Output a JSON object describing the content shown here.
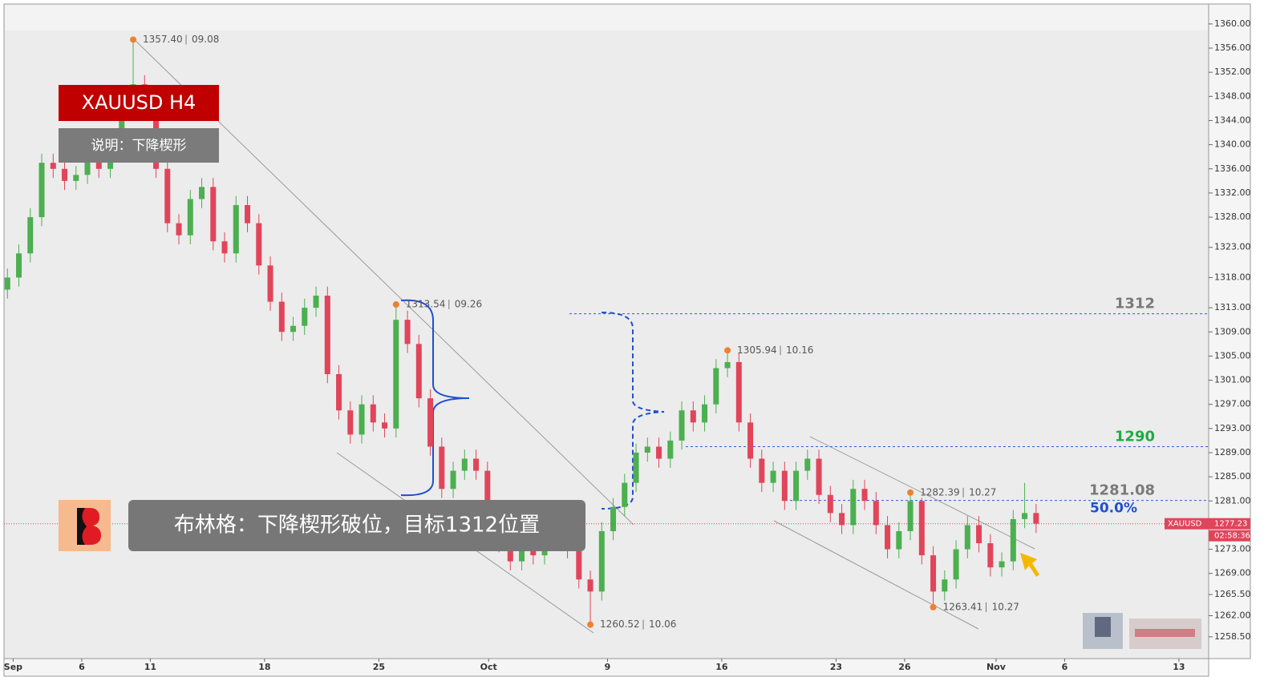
{
  "chart_data": {
    "type": "candlestick",
    "title": "XAUUSD  H4",
    "subtitle": "说明：下降楔形",
    "annotation": "布林格：下降楔形破位，目标1312位置",
    "symbol": "XAUUSD",
    "countdown": "02:58:36",
    "up_color": "#4caf50",
    "down_color": "#e0455a",
    "xlim": [
      -0.4,
      52.3
    ],
    "xticks": [
      {
        "value": 0,
        "label": "Sep"
      },
      {
        "value": 3,
        "label": "6"
      },
      {
        "value": 6,
        "label": "11"
      },
      {
        "value": 11,
        "label": "18"
      },
      {
        "value": 16,
        "label": "25"
      },
      {
        "value": 20.8,
        "label": "Oct"
      },
      {
        "value": 26,
        "label": "9"
      },
      {
        "value": 31,
        "label": "16"
      },
      {
        "value": 36,
        "label": "23"
      },
      {
        "value": 39,
        "label": "26"
      },
      {
        "value": 43,
        "label": "Nov"
      },
      {
        "value": 46,
        "label": "6"
      },
      {
        "value": 51,
        "label": "13"
      }
    ],
    "ylim": [
      1254.9,
      1363.3
    ],
    "yticks": [
      {
        "value": 1360,
        "label": "1360.00"
      },
      {
        "value": 1356,
        "label": "1356.00"
      },
      {
        "value": 1352,
        "label": "1352.00"
      },
      {
        "value": 1348,
        "label": "1348.00"
      },
      {
        "value": 1344,
        "label": "1344.00"
      },
      {
        "value": 1340,
        "label": "1340.00"
      },
      {
        "value": 1336,
        "label": "1336.00"
      },
      {
        "value": 1332,
        "label": "1332.00"
      },
      {
        "value": 1328,
        "label": "1328.00"
      },
      {
        "value": 1323,
        "label": "1323.00"
      },
      {
        "value": 1318,
        "label": "1318.00"
      },
      {
        "value": 1313,
        "label": "1313.00"
      },
      {
        "value": 1309,
        "label": "1309.00"
      },
      {
        "value": 1305,
        "label": "1305.00"
      },
      {
        "value": 1301,
        "label": "1301.00"
      },
      {
        "value": 1297,
        "label": "1297.00"
      },
      {
        "value": 1293,
        "label": "1293.00"
      },
      {
        "value": 1289,
        "label": "1289.00"
      },
      {
        "value": 1285,
        "label": "1285.00"
      },
      {
        "value": 1281,
        "label": "1281.00"
      },
      {
        "value": 1277,
        "label": "1277.00"
      },
      {
        "value": 1273,
        "label": "1273.00"
      },
      {
        "value": 1269,
        "label": "1269.00"
      },
      {
        "value": 1265.5,
        "label": "1265.50"
      },
      {
        "value": 1262,
        "label": "1262.00"
      },
      {
        "value": 1258.5,
        "label": "1258.50"
      }
    ],
    "x": [
      -0.25,
      0.25,
      0.75,
      1.25,
      1.75,
      2.25,
      2.75,
      3.25,
      3.75,
      4.25,
      4.75,
      5.25,
      5.75,
      6.25,
      6.75,
      7.25,
      7.75,
      8.25,
      8.75,
      9.25,
      9.75,
      10.25,
      10.75,
      11.25,
      11.75,
      12.25,
      12.75,
      13.25,
      13.75,
      14.25,
      14.75,
      15.25,
      15.75,
      16.25,
      16.75,
      17.25,
      17.75,
      18.25,
      18.75,
      19.25,
      19.75,
      20.25,
      20.75,
      21.25,
      21.75,
      22.25,
      22.75,
      23.25,
      23.75,
      24.25,
      24.75,
      25.25,
      25.75,
      26.25,
      26.75,
      27.25,
      27.75,
      28.25,
      28.75,
      29.25,
      29.75,
      30.25,
      30.75,
      31.25,
      31.75,
      32.25,
      32.75,
      33.25,
      33.75,
      34.25,
      34.75,
      35.25,
      35.75,
      36.25,
      36.75,
      37.25,
      37.75,
      38.25,
      38.75,
      39.25,
      39.75,
      40.25,
      40.75,
      41.25,
      41.75,
      42.25,
      42.75,
      43.25,
      43.75,
      44.25,
      44.75
    ],
    "open": [
      1316,
      1318,
      1322,
      1328,
      1337,
      1336,
      1334,
      1335,
      1338,
      1336,
      1340,
      1348,
      1350,
      1346,
      1336,
      1327,
      1325,
      1331,
      1333,
      1324,
      1322,
      1330,
      1327,
      1320,
      1314,
      1309,
      1310,
      1313,
      1315,
      1302,
      1296,
      1292,
      1297,
      1294,
      1293,
      1311,
      1307,
      1298,
      1290,
      1283,
      1286,
      1288,
      1286,
      1279,
      1274,
      1271,
      1273,
      1272,
      1275,
      1276,
      1273,
      1268,
      1266,
      1276,
      1280,
      1284,
      1289,
      1290,
      1288,
      1291,
      1296,
      1294,
      1297,
      1303,
      1304,
      1294,
      1288,
      1284,
      1286,
      1281,
      1286,
      1288,
      1282,
      1279,
      1277,
      1283,
      1281,
      1277,
      1273,
      1276,
      1281,
      1272,
      1266,
      1268,
      1273,
      1277,
      1274,
      1270,
      1271,
      1278,
      1279
    ],
    "high": [
      1319.5,
      1323.5,
      1329.5,
      1338.5,
      1338.5,
      1337.5,
      1336.5,
      1339.5,
      1339.5,
      1341.5,
      1349.5,
      1357.4,
      1351.5,
      1347.5,
      1337.5,
      1328.5,
      1332.5,
      1334.5,
      1334.5,
      1325.5,
      1331.5,
      1331.5,
      1328.5,
      1321.5,
      1315.5,
      1311.5,
      1314.5,
      1316.5,
      1316.5,
      1303.5,
      1297.5,
      1298.5,
      1298.5,
      1295.5,
      1313.54,
      1312.5,
      1308.5,
      1299.5,
      1291.5,
      1287.5,
      1289.5,
      1289.5,
      1287.5,
      1280.5,
      1275.5,
      1274.5,
      1274.5,
      1276.5,
      1277.5,
      1277.5,
      1274.5,
      1269.5,
      1277.5,
      1281.5,
      1285.5,
      1290.5,
      1291.5,
      1291.5,
      1292.5,
      1297.5,
      1297.5,
      1298.5,
      1304.5,
      1305.94,
      1305.5,
      1295.5,
      1289.5,
      1287.5,
      1287.5,
      1287.5,
      1289.5,
      1289.5,
      1283.5,
      1280.5,
      1284.5,
      1284.5,
      1282.5,
      1278.5,
      1277.5,
      1282.39,
      1281.5,
      1273.5,
      1269.5,
      1274.5,
      1278.5,
      1278.5,
      1275.5,
      1272.5,
      1279.5,
      1284,
      1280.5
    ],
    "low": [
      1314.5,
      1316.5,
      1320.5,
      1326.5,
      1334.5,
      1332.5,
      1332.5,
      1333.5,
      1334.5,
      1334.5,
      1338.5,
      1346.5,
      1344.5,
      1334.5,
      1325.5,
      1323.5,
      1323.5,
      1329.5,
      1322.5,
      1320.5,
      1320.5,
      1325.5,
      1318.5,
      1312.5,
      1307.5,
      1307.5,
      1308.5,
      1311.5,
      1300.5,
      1294.5,
      1290.5,
      1290.5,
      1292.5,
      1291.5,
      1291.5,
      1305.5,
      1296.5,
      1288.5,
      1281.5,
      1281.5,
      1284.5,
      1284.5,
      1277.5,
      1272.5,
      1269.5,
      1269.5,
      1270.5,
      1270.5,
      1273.5,
      1271.5,
      1266.5,
      1260.52,
      1264.5,
      1274.5,
      1278.5,
      1282.5,
      1287.5,
      1286.5,
      1286.5,
      1289.5,
      1292.5,
      1292.5,
      1295.5,
      1301.5,
      1292.5,
      1286.5,
      1282.5,
      1282.5,
      1279.5,
      1279.5,
      1284.5,
      1280.5,
      1277.5,
      1275.5,
      1275.5,
      1279.5,
      1275.5,
      1271.5,
      1271.5,
      1274.5,
      1270.5,
      1263.41,
      1264.5,
      1266.5,
      1271.5,
      1272.5,
      1268.5,
      1268.5,
      1269.5,
      1276.5,
      1275.7
    ],
    "close": [
      1318,
      1322,
      1328,
      1337,
      1336,
      1334,
      1335,
      1338,
      1336,
      1340,
      1348,
      1350,
      1346,
      1336,
      1327,
      1325,
      1331,
      1333,
      1324,
      1322,
      1330,
      1327,
      1320,
      1314,
      1309,
      1310,
      1313,
      1315,
      1302,
      1296,
      1292,
      1297,
      1294,
      1293,
      1311,
      1307,
      1298,
      1290,
      1283,
      1286,
      1288,
      1286,
      1279,
      1274,
      1271,
      1273,
      1272,
      1275,
      1276,
      1273,
      1268,
      1266,
      1276,
      1280,
      1284,
      1289,
      1290,
      1288,
      1291,
      1296,
      1294,
      1297,
      1303,
      1304,
      1294,
      1288,
      1284,
      1286,
      1281,
      1286,
      1288,
      1282,
      1279,
      1277,
      1283,
      1281,
      1277,
      1273,
      1276,
      1281,
      1272,
      1266,
      1268,
      1273,
      1277,
      1274,
      1270,
      1271,
      1278,
      1279,
      1277.23
    ],
    "pivots": {
      "x": [
        5.25,
        16.75,
        31.25,
        39.25,
        40.25,
        25.25
      ],
      "values": [
        1357.4,
        1313.54,
        1305.94,
        1282.39,
        1263.41,
        1260.52
      ],
      "value_labels": [
        "1357.40",
        "1313.54",
        "1305.94",
        "1282.39",
        "1263.41",
        "1260.52"
      ],
      "dates": [
        "09.08",
        "09.26",
        "10.16",
        "10.27",
        "10.27",
        "10.06"
      ],
      "color": "#f08030"
    },
    "levels": [
      {
        "value": 1312,
        "label": "1312",
        "color": "#7a7a7a"
      },
      {
        "value": 1290,
        "label": "1290",
        "color": "#22aa44"
      },
      {
        "value": 1281.08,
        "label": "1281.08",
        "color": "#7a7a7a"
      }
    ],
    "fib_label": {
      "value": 50,
      "label": "50.0%"
    }
  }
}
